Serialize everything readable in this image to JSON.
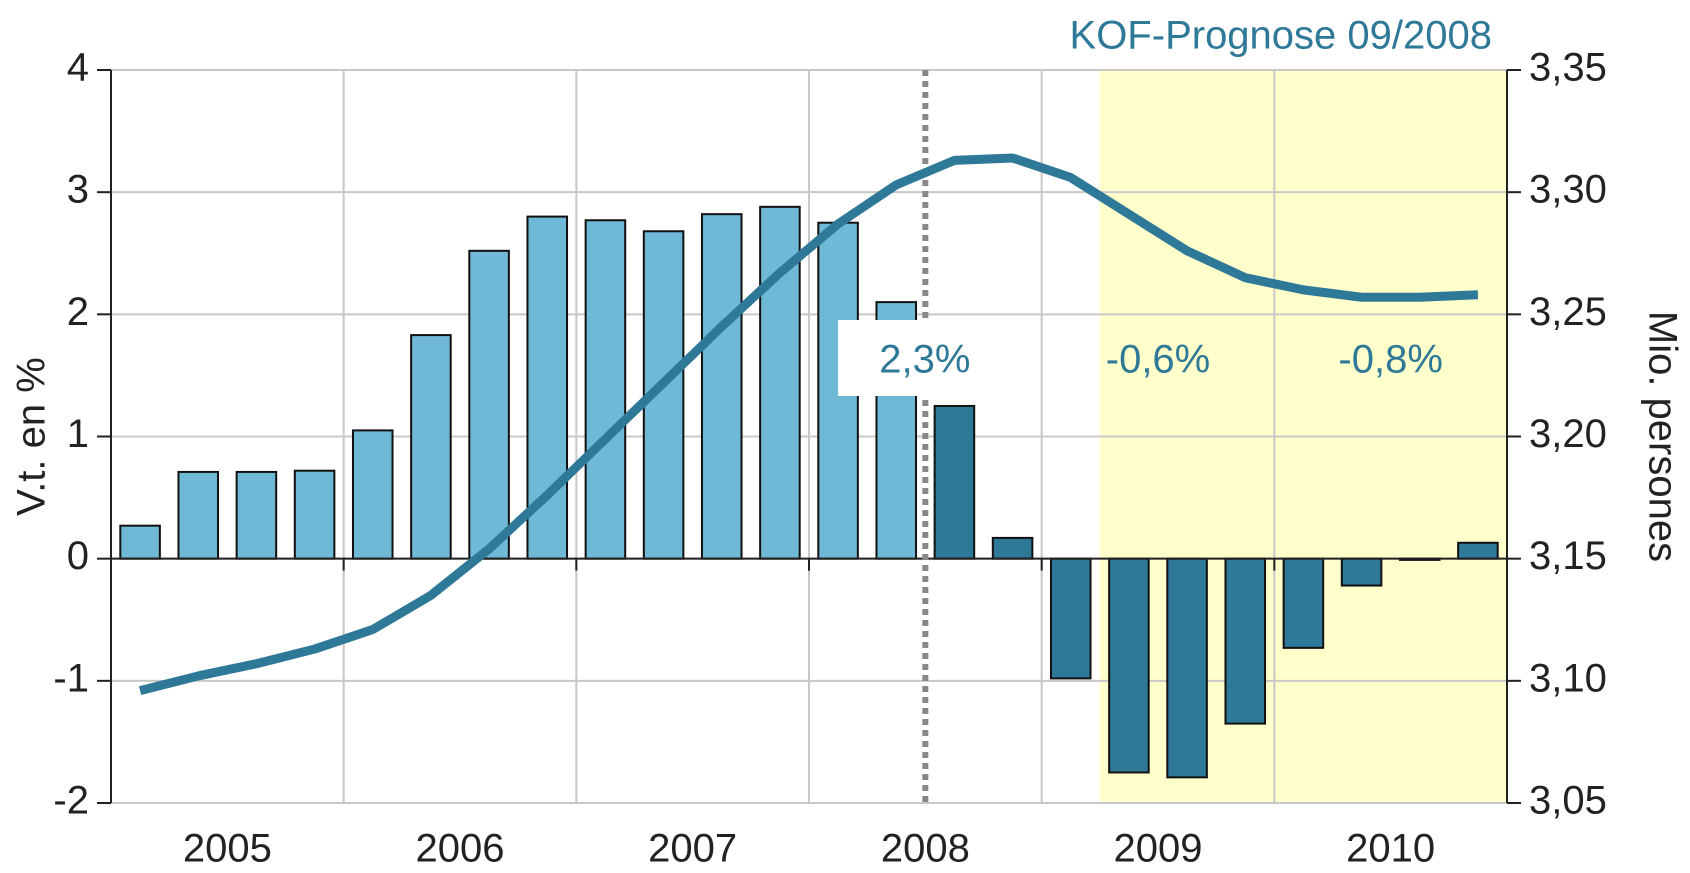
{
  "chart_data": {
    "type": "bar",
    "title": "KOF-Prognose 09/2008",
    "ylabel": "V.t. en %",
    "y2label": "Mio. persones",
    "categories": [
      "2005",
      null,
      null,
      null,
      "2006",
      null,
      null,
      null,
      "2007",
      null,
      null,
      null,
      "2008",
      null,
      null,
      null,
      "2009",
      null,
      null,
      null,
      "2010",
      null,
      null,
      null
    ],
    "series": [
      {
        "name": "V.t. en %",
        "colors": [
          "#6fb8d6",
          "#6fb8d6",
          "#6fb8d6",
          "#6fb8d6",
          "#6fb8d6",
          "#6fb8d6",
          "#6fb8d6",
          "#6fb8d6",
          "#6fb8d6",
          "#6fb8d6",
          "#6fb8d6",
          "#6fb8d6",
          "#6fb8d6",
          "#6fb8d6",
          "#2e7898",
          "#2e7898",
          "#2e7898",
          "#2e7898",
          "#2e7898",
          "#2e7898",
          "#2e7898",
          "#2e7898",
          "#2e7898",
          "#2e7898"
        ],
        "values": [
          0.27,
          0.71,
          0.71,
          0.72,
          1.05,
          1.83,
          2.52,
          2.8,
          2.77,
          2.68,
          2.82,
          2.88,
          2.75,
          2.1,
          1.25,
          0.17,
          -0.98,
          -1.75,
          -1.79,
          -1.35,
          -0.73,
          -0.22,
          -0.01,
          0.13
        ]
      },
      {
        "name": "Mio. persones",
        "color": "#2e7898",
        "axis": "y2",
        "values": [
          3.096,
          3.102,
          3.107,
          3.113,
          3.121,
          3.135,
          3.154,
          3.176,
          3.199,
          3.222,
          3.245,
          3.267,
          3.287,
          3.303,
          3.313,
          3.314,
          3.306,
          3.291,
          3.276,
          3.265,
          3.26,
          3.257,
          3.257,
          3.258
        ]
      }
    ],
    "annotations": [
      "2,3%",
      "-0,6%",
      "-0,8%"
    ],
    "ylim": [
      -2,
      4
    ],
    "yticks": [
      -2,
      -1,
      0,
      1,
      2,
      3,
      4
    ],
    "y2lim": [
      3.05,
      3.35
    ],
    "y2ticks": [
      {
        "value": 3.05,
        "label": "3,05"
      },
      {
        "value": 3.1,
        "label": "3,10"
      },
      {
        "value": 3.15,
        "label": "3,15"
      },
      {
        "value": 3.2,
        "label": "3,20"
      },
      {
        "value": 3.25,
        "label": "3,25"
      },
      {
        "value": 3.3,
        "label": "3,30"
      },
      {
        "value": 3.35,
        "label": "3,35"
      }
    ],
    "grid": true
  }
}
